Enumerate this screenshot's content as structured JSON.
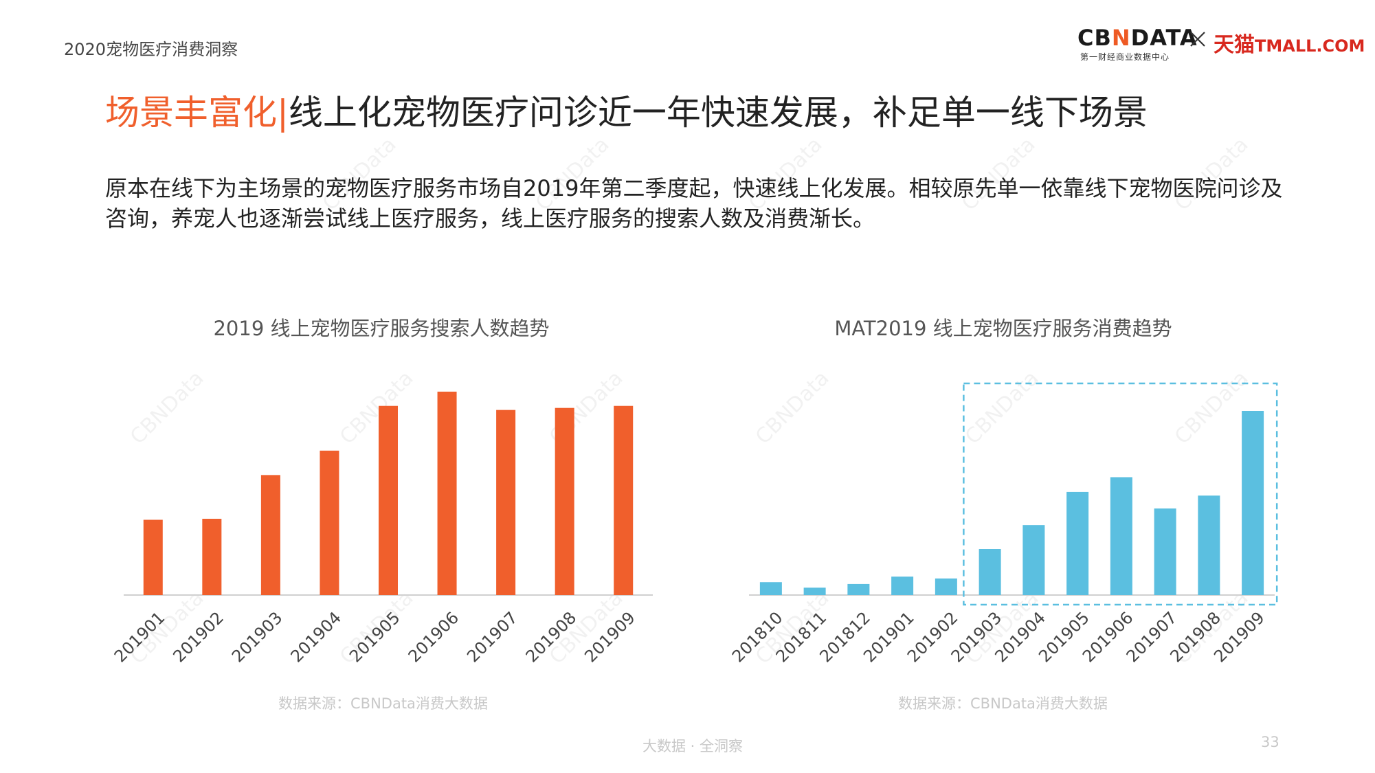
{
  "report_title": "2020宠物医疗消费洞察",
  "brand": {
    "cbn_prefix": "CB",
    "cbn_accent": "N",
    "cbn_suffix": "DATA",
    "cbn_sub": "第一财经商业数据中心",
    "tmall_cn": "天猫",
    "tmall_en": "TMALL.COM",
    "colors": {
      "cbn_accent": "#ee5a24",
      "tmall": "#d8281e"
    }
  },
  "headline": {
    "highlight": "场景丰富化",
    "separator": "|",
    "text": "线上化宠物医疗问诊近一年快速发展，补足单一线下场景"
  },
  "intro": "原本在线下为主场景的宠物医疗服务市场自2019年第二季度起，快速线上化发展。相较原先单一依靠线下宠物医院问诊及咨询，养宠人也逐渐尝试线上医疗服务，线上医疗服务的搜索人数及消费渐长。",
  "watermark": "CBNData",
  "chart_data": [
    {
      "type": "bar",
      "title": "2019 线上宠物医疗服务搜索人数趋势",
      "categories": [
        "201901",
        "201902",
        "201903",
        "201904",
        "201905",
        "201906",
        "201907",
        "201908",
        "201909"
      ],
      "values": [
        37,
        37.5,
        59,
        71,
        93,
        100,
        91,
        92,
        93
      ],
      "ylim": [
        0,
        100
      ],
      "color": "#f05f2c",
      "axis_labels_shown": false,
      "grid": false,
      "source": "数据来源：CBNData消费大数据"
    },
    {
      "type": "bar",
      "title": "MAT2019 线上宠物医疗服务消费趋势",
      "categories": [
        "201810",
        "201811",
        "201812",
        "201901",
        "201902",
        "201903",
        "201904",
        "201905",
        "201906",
        "201907",
        "201908",
        "201909"
      ],
      "values": [
        7,
        4,
        6,
        10,
        9,
        25,
        38,
        56,
        64,
        47,
        54,
        100
      ],
      "ylim": [
        0,
        100
      ],
      "color": "#5bbfe0",
      "highlight_range": [
        "201903",
        "201909"
      ],
      "highlight_color": "#5bbfe0",
      "axis_labels_shown": false,
      "grid": false,
      "source": "数据来源：CBNData消费大数据"
    }
  ],
  "footer": {
    "tagline": "大数据 · 全洞察",
    "page": "33"
  }
}
